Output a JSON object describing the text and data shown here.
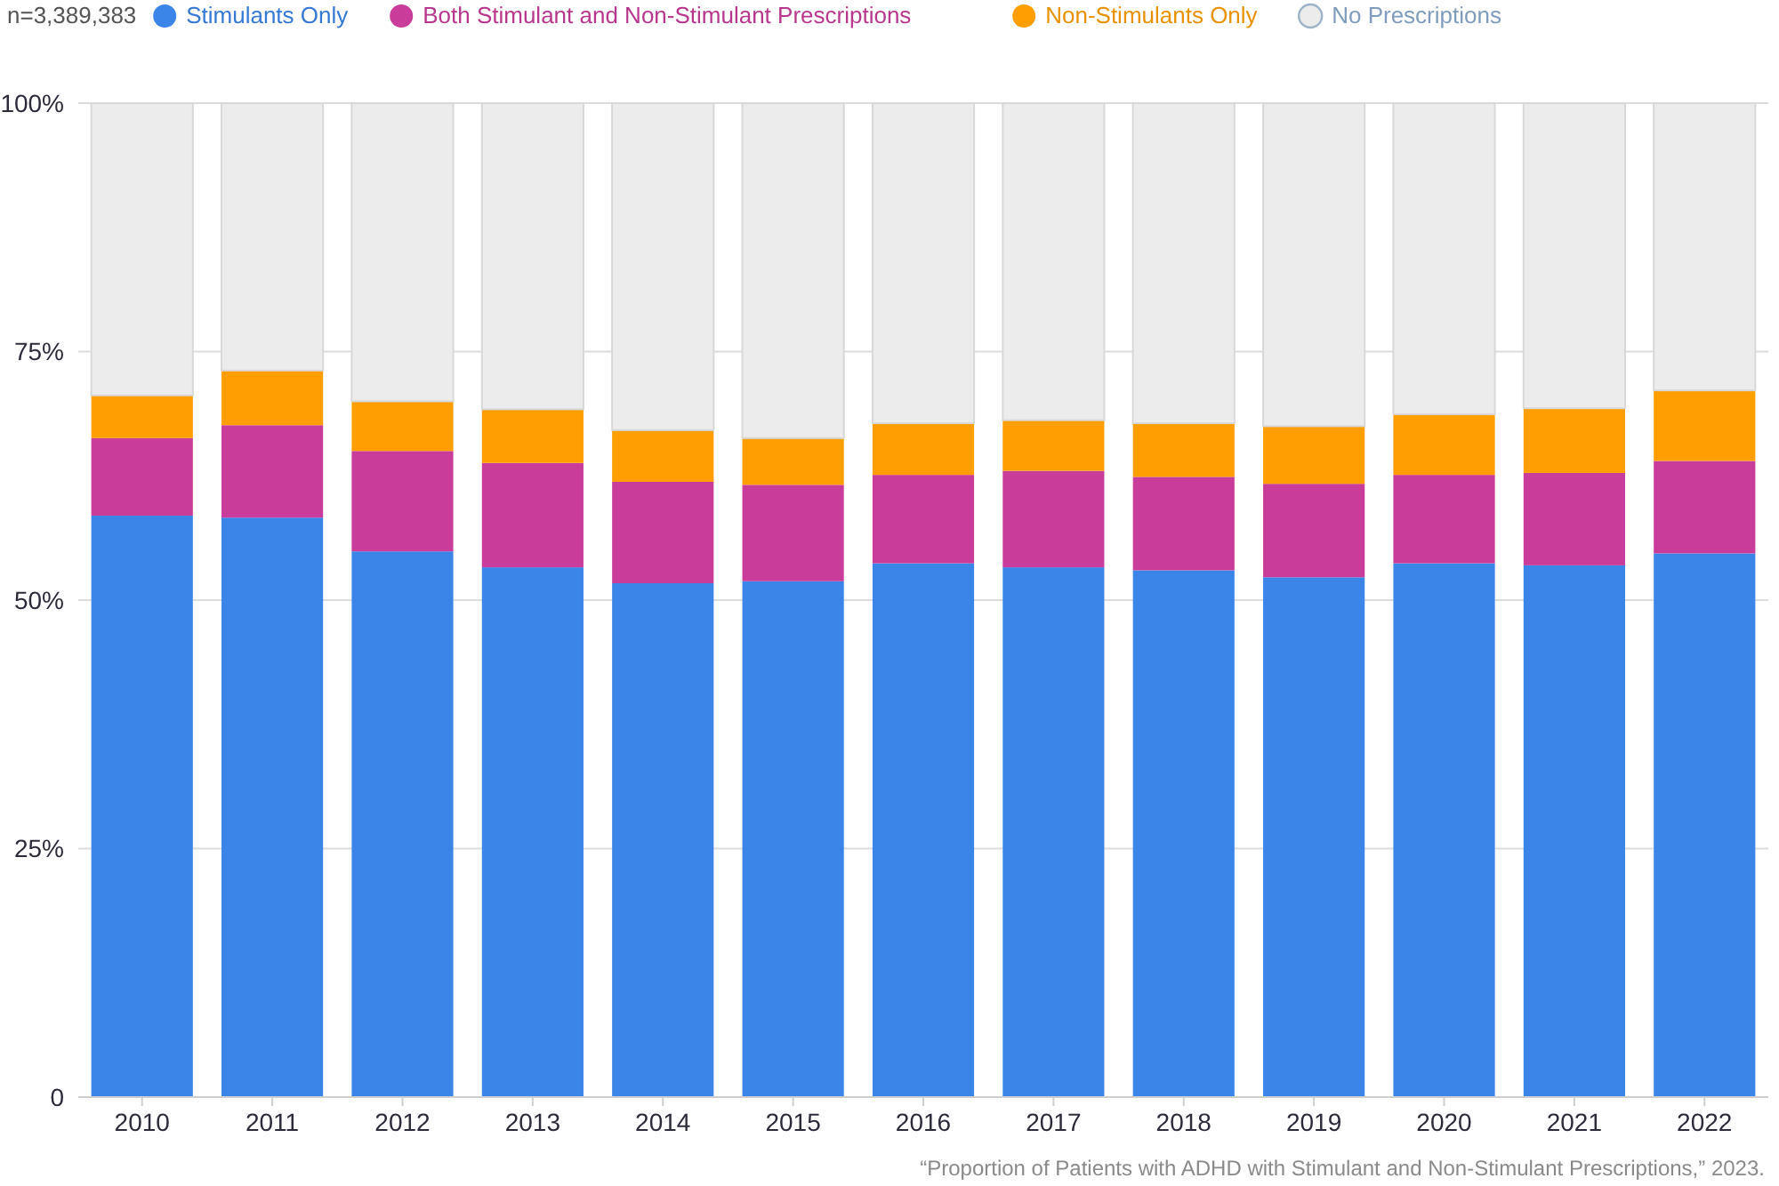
{
  "chart_data": {
    "type": "bar",
    "stacked": true,
    "categories": [
      "2010",
      "2011",
      "2012",
      "2013",
      "2014",
      "2015",
      "2016",
      "2017",
      "2018",
      "2019",
      "2020",
      "2021",
      "2022"
    ],
    "series": [
      {
        "name": "Stimulants Only",
        "color": "#3b84e8",
        "values": [
          58.5,
          58.3,
          54.9,
          53.3,
          51.7,
          51.9,
          53.7,
          53.3,
          53.0,
          52.3,
          53.7,
          53.5,
          54.7
        ]
      },
      {
        "name": "Both Stimulant and Non-Stimulant Prescriptions",
        "color": "#c93c9a",
        "values": [
          7.8,
          9.3,
          10.1,
          10.5,
          10.2,
          9.7,
          8.9,
          9.7,
          9.4,
          9.4,
          8.9,
          9.3,
          9.3
        ]
      },
      {
        "name": "Non-Stimulants Only",
        "color": "#ff9e00",
        "values": [
          4.3,
          5.5,
          5.0,
          5.4,
          5.2,
          4.7,
          5.2,
          5.1,
          5.4,
          5.8,
          6.1,
          6.5,
          7.1
        ]
      },
      {
        "name": "No Prescriptions",
        "color": "#ececec",
        "values": [
          29.4,
          26.9,
          30.0,
          30.8,
          32.9,
          33.7,
          32.2,
          31.9,
          32.2,
          32.5,
          31.3,
          30.7,
          28.9
        ]
      }
    ],
    "ylim": [
      0,
      100
    ],
    "yticks": [
      {
        "value": 0,
        "label": "0"
      },
      {
        "value": 25,
        "label": "25%"
      },
      {
        "value": 50,
        "label": "50%"
      },
      {
        "value": 75,
        "label": "75%"
      },
      {
        "value": 100,
        "label": "100%"
      }
    ],
    "grid": "y",
    "legend": "top",
    "annotations": [
      "n=3,389,383",
      "“Proportion of Patients with ADHD with Stimulant and Non-Stimulant Prescriptions,” 2023."
    ]
  }
}
